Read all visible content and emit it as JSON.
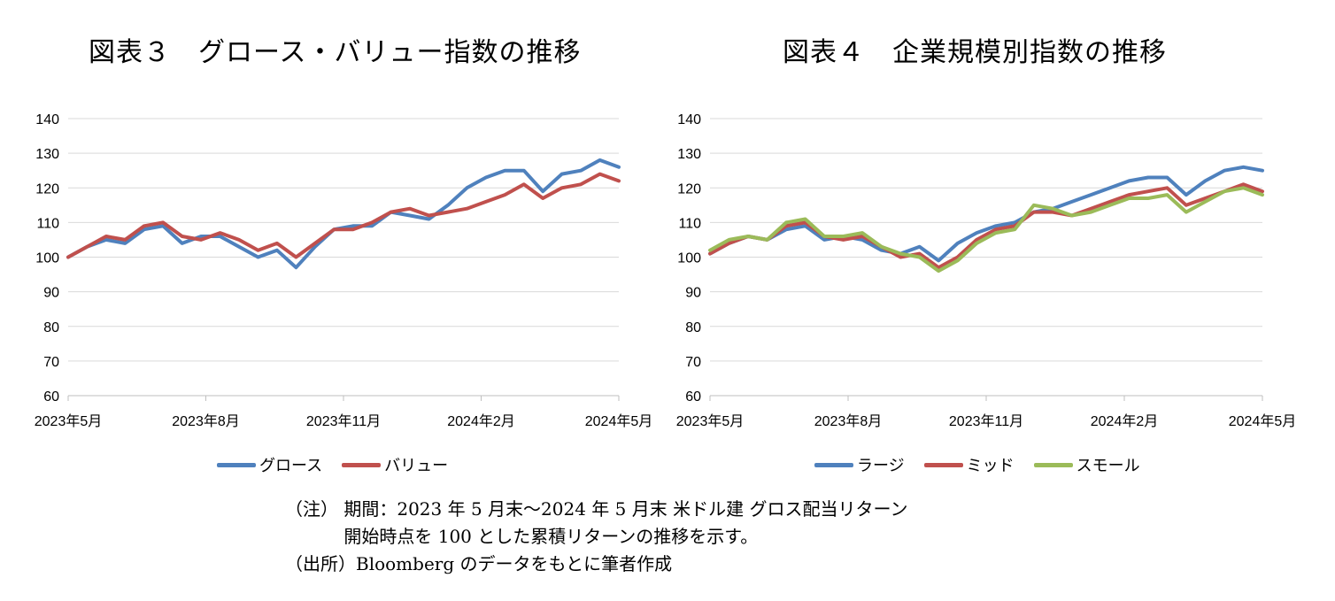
{
  "charts": [
    {
      "title": "図表３　グロース・バリュー指数の推移",
      "legend": [
        "グロース",
        "バリュー"
      ],
      "chart_data": {
        "type": "line",
        "yticks": [
          140,
          130,
          120,
          110,
          100,
          90,
          80,
          70,
          60
        ],
        "ylim": [
          60,
          140
        ],
        "xticks": [
          "2023年5月",
          "2023年8月",
          "2023年11月",
          "2024年2月",
          "2024年5月"
        ],
        "x": [
          "2023-05",
          "2023-06",
          "2023-06",
          "2023-06",
          "2023-07",
          "2023-07",
          "2023-08",
          "2023-08",
          "2023-08",
          "2023-09",
          "2023-09",
          "2023-10",
          "2023-10",
          "2023-10",
          "2023-11",
          "2023-11",
          "2023-12",
          "2023-12",
          "2024-01",
          "2024-01",
          "2024-02",
          "2024-02",
          "2024-02",
          "2024-03",
          "2024-03",
          "2024-04",
          "2024-04",
          "2024-04",
          "2024-05",
          "2024-05"
        ],
        "series": [
          {
            "name": "グロース",
            "color": "#4f81bd",
            "values": [
              100,
              103,
              105,
              104,
              108,
              109,
              104,
              106,
              106,
              103,
              100,
              102,
              97,
              103,
              108,
              109,
              109,
              113,
              112,
              111,
              115,
              120,
              123,
              125,
              125,
              119,
              124,
              125,
              128,
              126
            ]
          },
          {
            "name": "バリュー",
            "color": "#c0504d",
            "values": [
              100,
              103,
              106,
              105,
              109,
              110,
              106,
              105,
              107,
              105,
              102,
              104,
              100,
              104,
              108,
              108,
              110,
              113,
              114,
              112,
              113,
              114,
              116,
              118,
              121,
              117,
              120,
              121,
              124,
              122
            ]
          }
        ]
      }
    },
    {
      "title": "図表４　企業規模別指数の推移",
      "legend": [
        "ラージ",
        "ミッド",
        "スモール"
      ],
      "chart_data": {
        "type": "line",
        "yticks": [
          140,
          130,
          120,
          110,
          100,
          90,
          80,
          70,
          60
        ],
        "ylim": [
          60,
          140
        ],
        "xticks": [
          "2023年5月",
          "2023年8月",
          "2023年11月",
          "2024年2月",
          "2024年5月"
        ],
        "x": [
          "2023-05",
          "2023-06",
          "2023-06",
          "2023-06",
          "2023-07",
          "2023-07",
          "2023-08",
          "2023-08",
          "2023-08",
          "2023-09",
          "2023-09",
          "2023-10",
          "2023-10",
          "2023-10",
          "2023-11",
          "2023-11",
          "2023-12",
          "2023-12",
          "2024-01",
          "2024-01",
          "2024-02",
          "2024-02",
          "2024-02",
          "2024-03",
          "2024-03",
          "2024-04",
          "2024-04",
          "2024-04",
          "2024-05",
          "2024-05"
        ],
        "series": [
          {
            "name": "ラージ",
            "color": "#4f81bd",
            "values": [
              101,
              104,
              106,
              105,
              108,
              109,
              105,
              106,
              105,
              102,
              101,
              103,
              99,
              104,
              107,
              109,
              110,
              113,
              114,
              116,
              118,
              120,
              122,
              123,
              123,
              118,
              122,
              125,
              126,
              125
            ]
          },
          {
            "name": "ミッド",
            "color": "#c0504d",
            "values": [
              101,
              104,
              106,
              105,
              109,
              110,
              106,
              105,
              106,
              103,
              100,
              101,
              97,
              100,
              105,
              108,
              109,
              113,
              113,
              112,
              114,
              116,
              118,
              119,
              120,
              115,
              117,
              119,
              121,
              119
            ]
          },
          {
            "name": "スモール",
            "color": "#9bbb59",
            "values": [
              102,
              105,
              106,
              105,
              110,
              111,
              106,
              106,
              107,
              103,
              101,
              100,
              96,
              99,
              104,
              107,
              108,
              115,
              114,
              112,
              113,
              115,
              117,
              117,
              118,
              113,
              116,
              119,
              120,
              118
            ]
          }
        ]
      }
    }
  ],
  "notes": [
    "（注） 期間：2023 年 5 月末～2024 年 5 月末 米ドル建 グロス配当リターン",
    "　　　 開始時点を 100 とした累積リターンの推移を示す。",
    "（出所）Bloomberg のデータをもとに筆者作成"
  ]
}
